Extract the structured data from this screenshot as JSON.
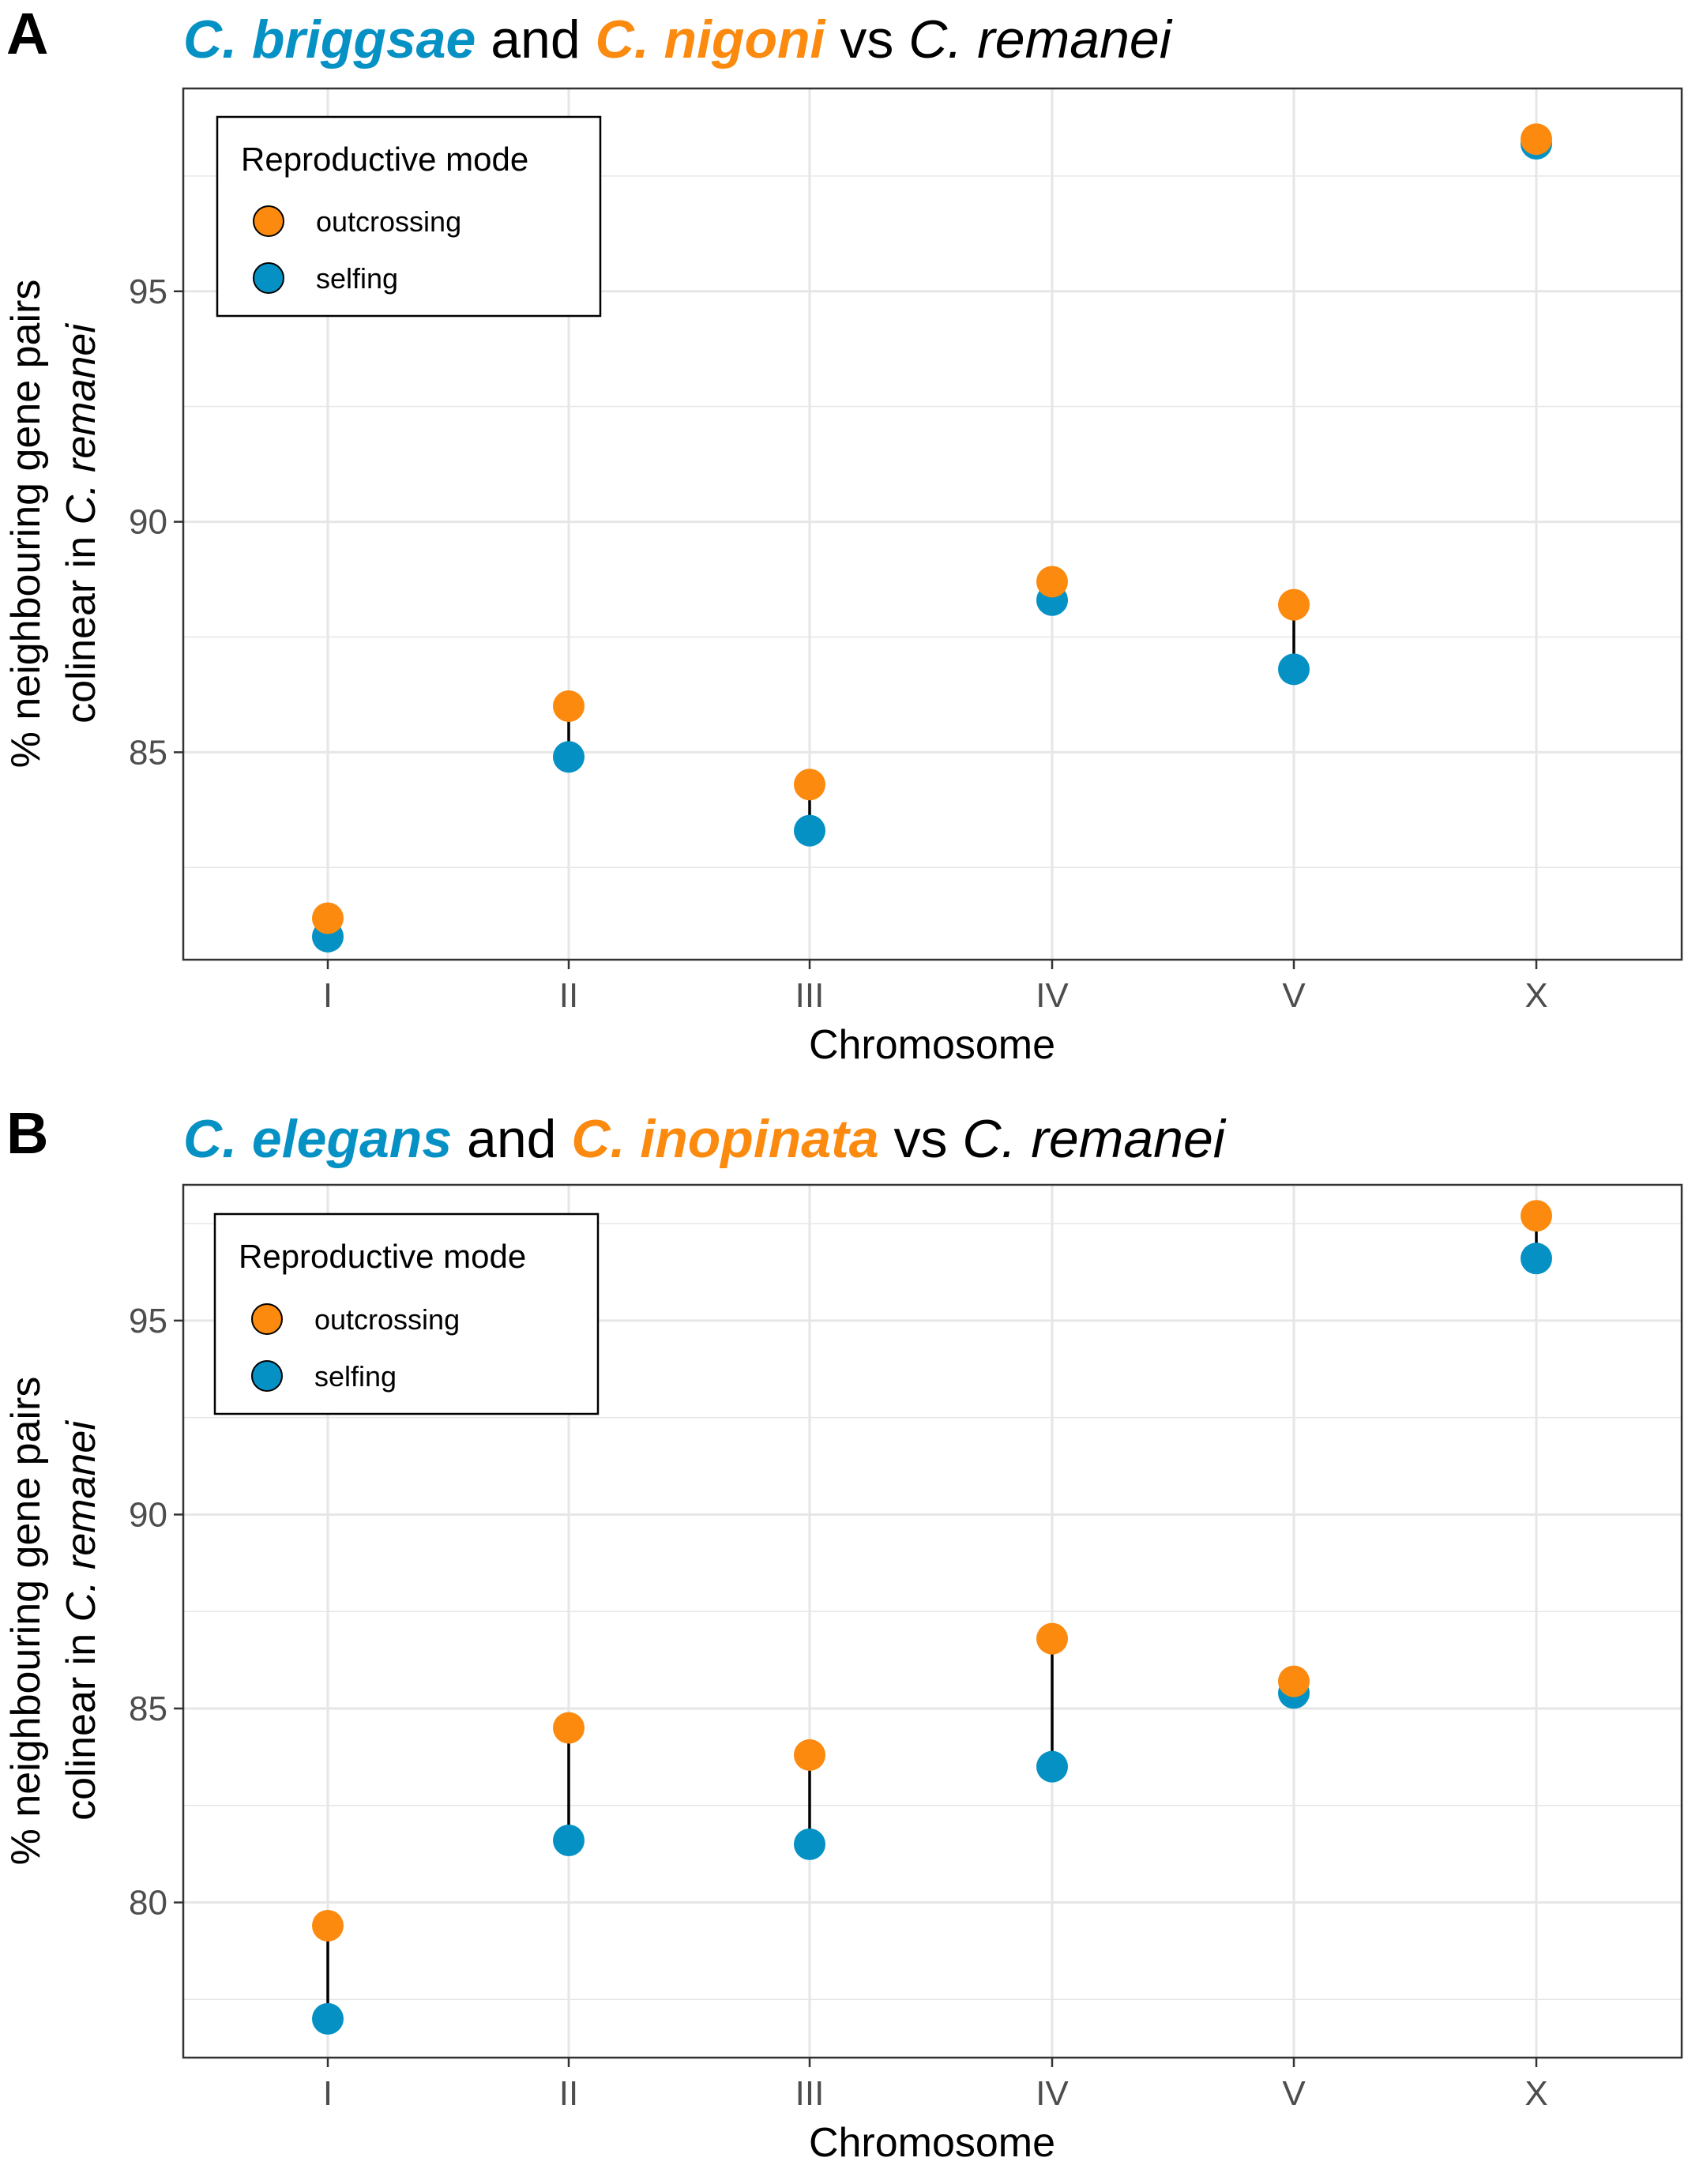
{
  "colors": {
    "selfing": "#0591C4",
    "outcrossing": "#FB8A0F",
    "grid": "#e6e6e6",
    "tick": "#4d4d4d"
  },
  "chart_data": [
    {
      "type": "scatter",
      "panel": "A",
      "title": {
        "self_species": "C. briggsae",
        "join": "and",
        "out_species": "C. nigoni",
        "vs": "vs",
        "ref_species": "C. remanei"
      },
      "xlabel": "Chromosome",
      "ylabel": {
        "line1": "% neighbouring gene pairs",
        "line2_prefix": "colinear in ",
        "line2_species": "C. remanei"
      },
      "categories": [
        "I",
        "II",
        "III",
        "IV",
        "V",
        "X"
      ],
      "ylim": [
        80.5,
        99.4
      ],
      "yticks": [
        "85",
        "90",
        "95"
      ],
      "grid": true,
      "legend": {
        "title": "Reproductive mode",
        "position": "top-left",
        "entries": [
          "outcrossing",
          "selfing"
        ]
      },
      "series": [
        {
          "name": "outcrossing",
          "values": [
            81.4,
            86.0,
            84.3,
            88.7,
            88.2,
            98.3
          ]
        },
        {
          "name": "selfing",
          "values": [
            81.0,
            84.9,
            83.3,
            88.3,
            86.8,
            98.2
          ]
        }
      ]
    },
    {
      "type": "scatter",
      "panel": "B",
      "title": {
        "self_species": "C. elegans",
        "join": "and",
        "out_species": "C. inopinata",
        "vs": "vs",
        "ref_species": "C. remanei"
      },
      "xlabel": "Chromosome",
      "ylabel": {
        "line1": "% neighbouring gene pairs",
        "line2_prefix": "colinear in ",
        "line2_species": "C. remanei"
      },
      "categories": [
        "I",
        "II",
        "III",
        "IV",
        "V",
        "X"
      ],
      "ylim": [
        76.0,
        98.5
      ],
      "yticks": [
        "80",
        "85",
        "90",
        "95"
      ],
      "grid": true,
      "legend": {
        "title": "Reproductive mode",
        "position": "top-left",
        "entries": [
          "outcrossing",
          "selfing"
        ]
      },
      "series": [
        {
          "name": "outcrossing",
          "values": [
            79.4,
            84.5,
            83.8,
            86.8,
            85.7,
            97.7
          ]
        },
        {
          "name": "selfing",
          "values": [
            77.0,
            81.6,
            81.5,
            83.5,
            85.4,
            96.6
          ]
        }
      ]
    }
  ]
}
